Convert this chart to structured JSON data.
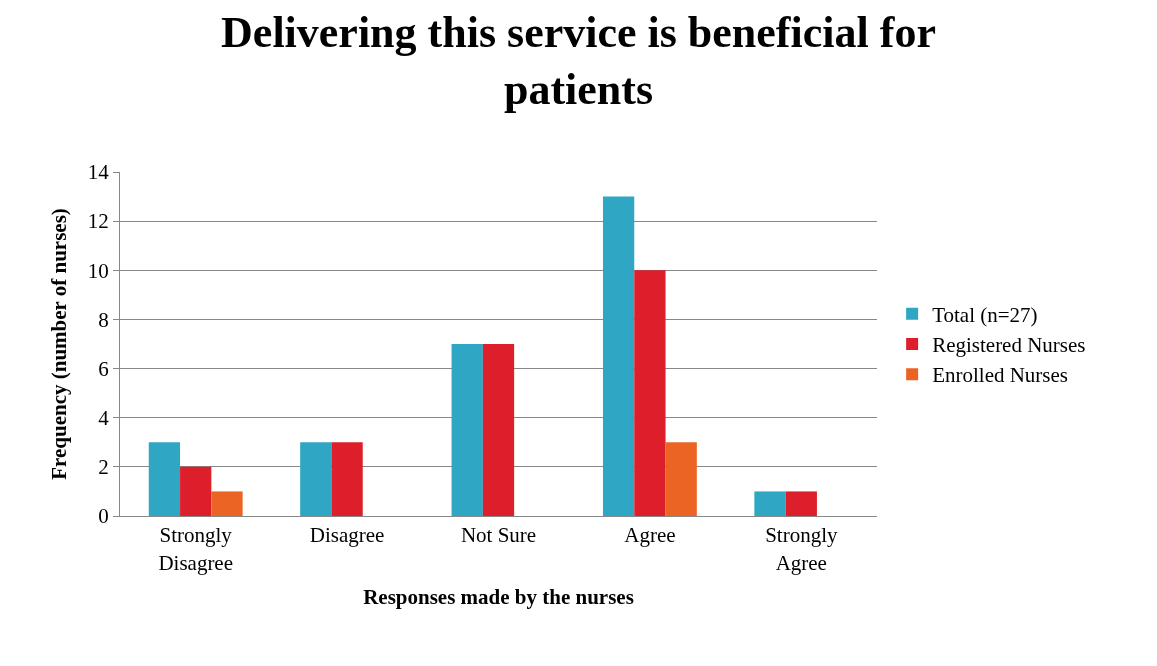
{
  "chart_data": {
    "type": "bar",
    "title": "Delivering this service is beneficial for patients",
    "xlabel": "Responses made by the nurses",
    "ylabel": "Frequency (number of nurses)",
    "categories": [
      "Strongly Disagree",
      "Disagree",
      "Not Sure",
      "Agree",
      "Strongly Agree"
    ],
    "series": [
      {
        "name": "Total (n=27)",
        "color": "#2ea6c4",
        "values": [
          3,
          3,
          7,
          13,
          1
        ]
      },
      {
        "name": "Registered Nurses",
        "color": "#dc1f2a",
        "values": [
          2,
          3,
          7,
          10,
          1
        ]
      },
      {
        "name": "Enrolled Nurses",
        "color": "#ec6423",
        "values": [
          1,
          0,
          0,
          3,
          0
        ]
      }
    ],
    "ylim": [
      0,
      14
    ],
    "yticks": [
      0,
      2,
      4,
      6,
      8,
      10,
      12,
      14
    ],
    "grid": "y",
    "legend": "right"
  }
}
